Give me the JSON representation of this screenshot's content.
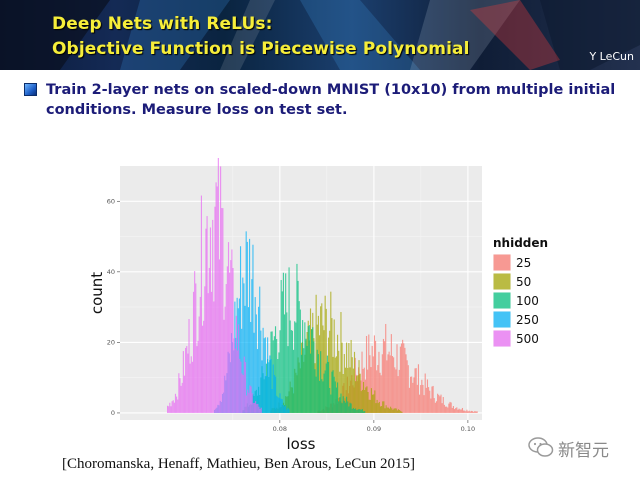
{
  "slide": {
    "title_line1": "Deep Nets with ReLUs:",
    "title_line2": "Objective Function is Piecewise Polynomial",
    "author": "Y LeCun",
    "bullet_icon": "blue-square-bullet",
    "bullet_text_line1": "Train 2-layer nets on scaled-down MNIST (10x10) from multiple initial",
    "bullet_text_line2": "conditions. Measure loss on test set.",
    "citation": "[Choromanska, Henaff, Mathieu, Ben Arous, LeCun 2015]",
    "watermark_text": "新智元"
  },
  "chart_data": {
    "type": "histogram",
    "xlabel": "loss",
    "ylabel": "count",
    "xlim": [
      0.063,
      0.1015
    ],
    "ylim": [
      -2,
      70
    ],
    "x_ticks": [
      0.08,
      0.09,
      0.1
    ],
    "x_tick_labels": [
      "0.08",
      "0.09",
      "0.10"
    ],
    "y_ticks": [
      0,
      20,
      40,
      60
    ],
    "y_tick_labels": [
      "0",
      "20",
      "40",
      "60"
    ],
    "grid": true,
    "legend_title": "nhidden",
    "legend_position": "right",
    "series": [
      {
        "name": "25",
        "color": "#F8766D",
        "approx_center": 0.0905,
        "approx_peak_count": 22,
        "approx_range": [
          0.084,
          0.101
        ]
      },
      {
        "name": "50",
        "color": "#A3A500",
        "approx_center": 0.0845,
        "approx_peak_count": 30,
        "approx_range": [
          0.079,
          0.093
        ]
      },
      {
        "name": "100",
        "color": "#00BF7D",
        "approx_center": 0.081,
        "approx_peak_count": 37,
        "approx_range": [
          0.076,
          0.089
        ]
      },
      {
        "name": "250",
        "color": "#00B0F6",
        "approx_center": 0.0765,
        "approx_peak_count": 50,
        "approx_range": [
          0.073,
          0.081
        ]
      },
      {
        "name": "500",
        "color": "#E76BF3",
        "approx_center": 0.073,
        "approx_peak_count": 67,
        "approx_range": [
          0.068,
          0.078
        ]
      }
    ]
  }
}
